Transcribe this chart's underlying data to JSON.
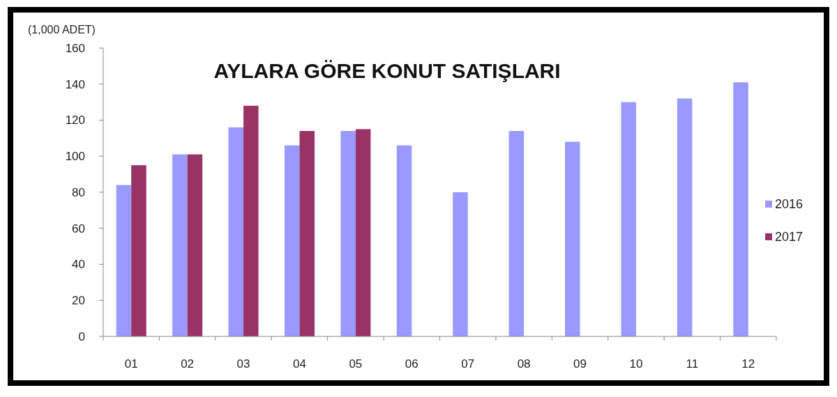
{
  "chart_data": {
    "type": "bar",
    "title": "AYLARA GÖRE KONUT SATIŞLARI",
    "ylabel": "(1,000 ADET)",
    "categories": [
      "01",
      "02",
      "03",
      "04",
      "05",
      "06",
      "07",
      "08",
      "09",
      "10",
      "11",
      "12"
    ],
    "series": [
      {
        "name": "2016",
        "color": "#9999ff",
        "values": [
          84,
          101,
          116,
          106,
          114,
          106,
          80,
          114,
          108,
          130,
          132,
          141
        ]
      },
      {
        "name": "2017",
        "color": "#993366",
        "values": [
          95,
          101,
          128,
          114,
          115,
          null,
          null,
          null,
          null,
          null,
          null,
          null
        ]
      }
    ],
    "ylim": [
      0,
      160
    ],
    "yticks": [
      0,
      20,
      40,
      60,
      80,
      100,
      120,
      140,
      160
    ],
    "legend": "right"
  }
}
